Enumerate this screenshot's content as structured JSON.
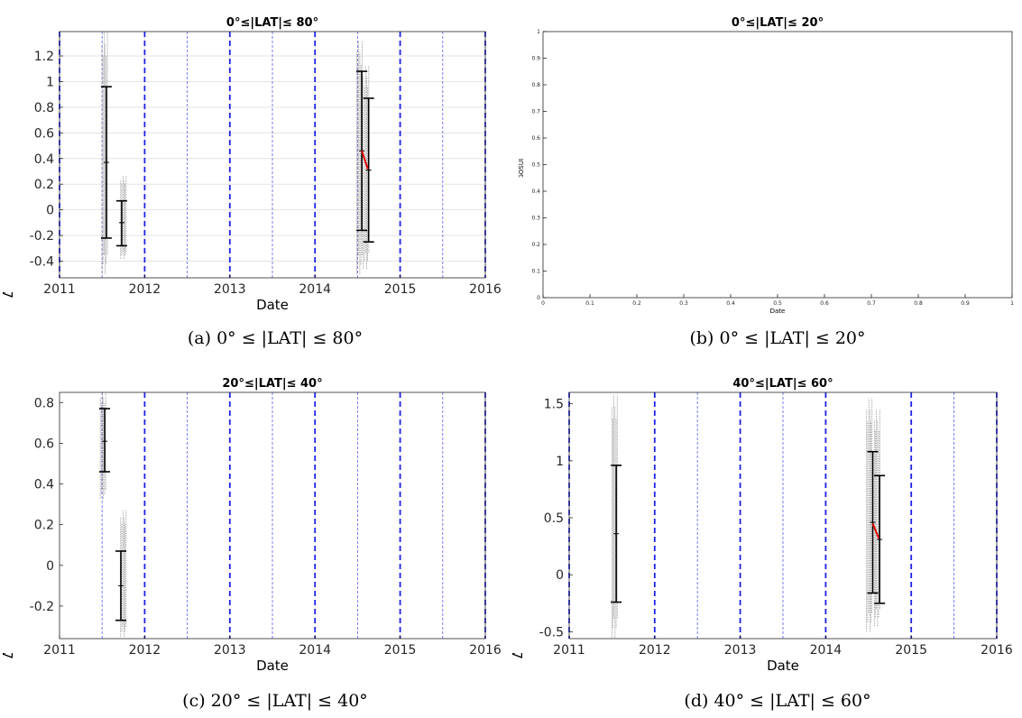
{
  "chart_data": [
    {
      "id": "a",
      "type": "errorbar",
      "title": "0°≤|LAT|≤ 80°",
      "caption": "(a) 0° ≤ |LAT| ≤ 80°",
      "xlabel": "Date",
      "ylabel": "Δ SSS (Sat-TSG-GOSUD-Research-vesse",
      "xlim": [
        2011,
        2016
      ],
      "ylim": [
        -0.53,
        1.39
      ],
      "xticks": [
        2011,
        2012,
        2013,
        2014,
        2015,
        2016
      ],
      "yticks": [
        -0.4,
        -0.2,
        0,
        0.2,
        0.4,
        0.6,
        0.8,
        1,
        1.2
      ],
      "grid": true,
      "year_lines": [
        2011,
        2012,
        2013,
        2014,
        2015,
        2016
      ],
      "halfyear_lines": [
        2011.5,
        2012.5,
        2013.5,
        2014.5,
        2015.5
      ],
      "errorbars": [
        {
          "x": 2011.55,
          "mean": 0.37,
          "low": -0.22,
          "high": 0.96
        },
        {
          "x": 2011.73,
          "mean": -0.1,
          "low": -0.28,
          "high": 0.07
        },
        {
          "x": 2014.55,
          "mean": 0.46,
          "low": -0.16,
          "high": 1.08
        },
        {
          "x": 2014.63,
          "mean": 0.31,
          "low": -0.25,
          "high": 0.87
        }
      ],
      "scatter_ranges": [
        {
          "x": 2011.53,
          "low": -0.5,
          "high": 1.39
        },
        {
          "x": 2011.75,
          "low": -0.38,
          "high": 0.27
        },
        {
          "x": 2014.52,
          "low": -0.5,
          "high": 1.32
        },
        {
          "x": 2014.6,
          "low": -0.46,
          "high": 1.12
        }
      ],
      "trend": [
        {
          "x": 2014.55,
          "y": 0.46
        },
        {
          "x": 2014.62,
          "y": 0.32
        }
      ]
    },
    {
      "id": "b",
      "type": "empty",
      "title": "0°≤|LAT|≤ 20°",
      "caption": "(b) 0° ≤ |LAT| ≤ 20°",
      "xlabel": "Date",
      "ylabel": "Δ SSS (Sat-TSG-GOSUD-Research-vessel)",
      "xlim": [
        0,
        1
      ],
      "ylim": [
        0,
        1
      ],
      "xticks": [
        0,
        0.1,
        0.2,
        0.3,
        0.4,
        0.5,
        0.6,
        0.7,
        0.8,
        0.9,
        1
      ],
      "yticks": [
        0,
        0.1,
        0.2,
        0.3,
        0.4,
        0.5,
        0.6,
        0.7,
        0.8,
        0.9,
        1
      ],
      "grid": false
    },
    {
      "id": "c",
      "type": "errorbar",
      "title": "20°≤|LAT|≤ 40°",
      "caption": "(c) 20° ≤ |LAT| ≤ 40°",
      "xlabel": "Date",
      "ylabel": "Δ SSS (Sat-TSG-GOSUD-Research-vesse",
      "xlim": [
        2011,
        2016
      ],
      "ylim": [
        -0.36,
        0.85
      ],
      "xticks": [
        2011,
        2012,
        2013,
        2014,
        2015,
        2016
      ],
      "yticks": [
        -0.2,
        0,
        0.2,
        0.4,
        0.6,
        0.8
      ],
      "grid": false,
      "year_lines": [
        2012,
        2013,
        2014,
        2015,
        2016
      ],
      "halfyear_lines": [
        2011.5,
        2012.5,
        2013.5,
        2014.5,
        2015.5
      ],
      "errorbars": [
        {
          "x": 2011.53,
          "mean": 0.61,
          "low": 0.46,
          "high": 0.77
        },
        {
          "x": 2011.72,
          "mean": -0.1,
          "low": -0.27,
          "high": 0.07
        }
      ],
      "scatter_ranges": [
        {
          "x": 2011.51,
          "low": 0.33,
          "high": 0.85
        },
        {
          "x": 2011.75,
          "low": -0.35,
          "high": 0.27
        }
      ]
    },
    {
      "id": "d",
      "type": "errorbar",
      "title": "40°≤|LAT|≤ 60°",
      "caption": "(d) 40° ≤ |LAT| ≤ 60°",
      "xlabel": "Date",
      "ylabel": "Δ SSS (Sat-TSG-GOSUD-Research-vesse",
      "xlim": [
        2011,
        2016
      ],
      "ylim": [
        -0.56,
        1.6
      ],
      "xticks": [
        2011,
        2012,
        2013,
        2014,
        2015,
        2016
      ],
      "yticks": [
        -0.5,
        0,
        0.5,
        1,
        1.5
      ],
      "grid": false,
      "year_lines": [
        2011,
        2012,
        2013,
        2014,
        2015,
        2016
      ],
      "halfyear_lines": [
        2012.5,
        2013.5,
        2015.5
      ],
      "errorbars": [
        {
          "x": 2011.55,
          "mean": 0.36,
          "low": -0.24,
          "high": 0.96
        },
        {
          "x": 2014.55,
          "mean": 0.46,
          "low": -0.16,
          "high": 1.08
        },
        {
          "x": 2014.63,
          "mean": 0.31,
          "low": -0.25,
          "high": 0.87
        }
      ],
      "scatter_ranges": [
        {
          "x": 2011.53,
          "low": -0.55,
          "high": 1.58
        },
        {
          "x": 2014.51,
          "low": -0.5,
          "high": 1.55
        },
        {
          "x": 2014.6,
          "low": -0.45,
          "high": 1.45
        }
      ],
      "trend": [
        {
          "x": 2014.55,
          "y": 0.45
        },
        {
          "x": 2014.62,
          "y": 0.32
        }
      ]
    }
  ],
  "colors": {
    "year_line": "#1f22e6",
    "halfyear_line": "#6a6cf2",
    "errorbar": "#000000",
    "trend": "#e00000",
    "scatter": "#8a8a8a",
    "grid": "#e3e3e3",
    "axis": "#262626"
  }
}
